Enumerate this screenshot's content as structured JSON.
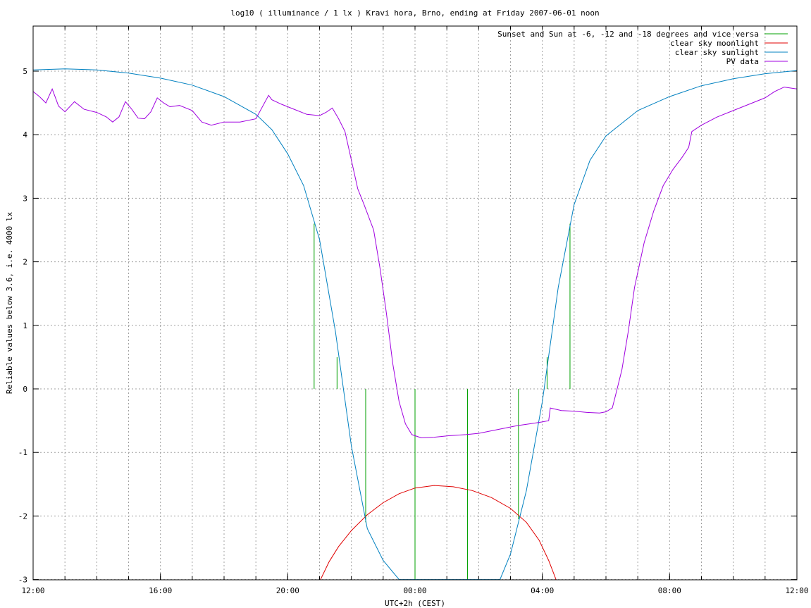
{
  "chart_data": {
    "type": "line",
    "title": "log10 ( illuminance / 1 lx ) Kravi hora, Brno, ending at Friday 2007-06-01 noon",
    "xlabel": "UTC+2h (CEST)",
    "ylabel": "Reliable values below 3.6, i.e. 4000 lx",
    "xlim_hours": [
      0,
      24
    ],
    "ylim": [
      -3,
      5.7
    ],
    "grid": true,
    "legend_position": "top-right",
    "x_ticks": [
      {
        "h": 0,
        "label": "12:00"
      },
      {
        "h": 4,
        "label": "16:00"
      },
      {
        "h": 8,
        "label": "20:00"
      },
      {
        "h": 12,
        "label": "00:00"
      },
      {
        "h": 16,
        "label": "04:00"
      },
      {
        "h": 20,
        "label": "08:00"
      },
      {
        "h": 24,
        "label": "12:00"
      }
    ],
    "x_grid_hours": [
      1,
      2,
      3,
      4,
      5,
      6,
      7,
      8,
      9,
      10,
      11,
      12,
      13,
      14,
      15,
      16,
      17,
      18,
      19,
      20,
      21,
      22,
      23
    ],
    "y_ticks": [
      -3,
      -2,
      -1,
      0,
      1,
      2,
      3,
      4,
      5
    ],
    "series": [
      {
        "name": "Sunset and Sun at -6, -12 and -18 degrees and vice versa",
        "color": "#00a000",
        "kind": "vlines",
        "lines": [
          {
            "h": 8.83,
            "y0": 0,
            "y1": 2.6
          },
          {
            "h": 9.55,
            "y0": 0,
            "y1": 0.5
          },
          {
            "h": 10.45,
            "y0": -2.1,
            "y1": 0
          },
          {
            "h": 12.0,
            "y0": -3,
            "y1": 0
          },
          {
            "h": 13.65,
            "y0": -3,
            "y1": 0
          },
          {
            "h": 15.25,
            "y0": -2.05,
            "y1": 0
          },
          {
            "h": 16.15,
            "y0": 0,
            "y1": 0.5
          },
          {
            "h": 16.87,
            "y0": 0,
            "y1": 2.6
          }
        ]
      },
      {
        "name": "clear sky moonlight",
        "color": "#e00000",
        "kind": "line",
        "points": [
          [
            9.03,
            -3.0
          ],
          [
            9.3,
            -2.72
          ],
          [
            9.6,
            -2.48
          ],
          [
            10.0,
            -2.23
          ],
          [
            10.5,
            -1.98
          ],
          [
            11.0,
            -1.79
          ],
          [
            11.5,
            -1.65
          ],
          [
            12.0,
            -1.56
          ],
          [
            12.6,
            -1.52
          ],
          [
            13.2,
            -1.54
          ],
          [
            13.8,
            -1.6
          ],
          [
            14.4,
            -1.71
          ],
          [
            15.0,
            -1.88
          ],
          [
            15.5,
            -2.1
          ],
          [
            15.9,
            -2.38
          ],
          [
            16.2,
            -2.7
          ],
          [
            16.43,
            -3.0
          ]
        ]
      },
      {
        "name": "clear sky sunlight",
        "color": "#0080c0",
        "kind": "line",
        "points": [
          [
            0,
            5.02
          ],
          [
            1,
            5.035
          ],
          [
            2,
            5.02
          ],
          [
            3,
            4.97
          ],
          [
            4,
            4.89
          ],
          [
            5,
            4.78
          ],
          [
            6,
            4.6
          ],
          [
            7,
            4.32
          ],
          [
            7.5,
            4.08
          ],
          [
            8.0,
            3.7
          ],
          [
            8.5,
            3.2
          ],
          [
            9.0,
            2.35
          ],
          [
            9.5,
            0.9
          ],
          [
            10.0,
            -0.9
          ],
          [
            10.5,
            -2.2
          ],
          [
            11.0,
            -2.7
          ],
          [
            11.5,
            -3.0
          ],
          [
            14.67,
            -3.0
          ],
          [
            15.0,
            -2.6
          ],
          [
            15.5,
            -1.6
          ],
          [
            16.0,
            -0.2
          ],
          [
            16.5,
            1.6
          ],
          [
            17.0,
            2.9
          ],
          [
            17.5,
            3.6
          ],
          [
            18.0,
            3.98
          ],
          [
            19.0,
            4.38
          ],
          [
            20.0,
            4.6
          ],
          [
            21.0,
            4.77
          ],
          [
            22.0,
            4.88
          ],
          [
            23.0,
            4.96
          ],
          [
            24.0,
            5.01
          ]
        ]
      },
      {
        "name": "PV data",
        "color": "#a000e0",
        "kind": "line",
        "points": [
          [
            0,
            4.68
          ],
          [
            0.2,
            4.6
          ],
          [
            0.4,
            4.5
          ],
          [
            0.6,
            4.72
          ],
          [
            0.8,
            4.45
          ],
          [
            1.0,
            4.36
          ],
          [
            1.3,
            4.52
          ],
          [
            1.6,
            4.4
          ],
          [
            2.0,
            4.35
          ],
          [
            2.3,
            4.28
          ],
          [
            2.5,
            4.2
          ],
          [
            2.7,
            4.28
          ],
          [
            2.9,
            4.52
          ],
          [
            3.1,
            4.4
          ],
          [
            3.3,
            4.26
          ],
          [
            3.5,
            4.25
          ],
          [
            3.7,
            4.36
          ],
          [
            3.9,
            4.58
          ],
          [
            4.1,
            4.5
          ],
          [
            4.3,
            4.44
          ],
          [
            4.6,
            4.46
          ],
          [
            5.0,
            4.38
          ],
          [
            5.3,
            4.2
          ],
          [
            5.6,
            4.15
          ],
          [
            6.0,
            4.2
          ],
          [
            6.5,
            4.2
          ],
          [
            7.0,
            4.25
          ],
          [
            7.4,
            4.62
          ],
          [
            7.5,
            4.55
          ],
          [
            7.8,
            4.48
          ],
          [
            8.2,
            4.4
          ],
          [
            8.6,
            4.32
          ],
          [
            9.0,
            4.3
          ],
          [
            9.2,
            4.35
          ],
          [
            9.4,
            4.42
          ],
          [
            9.6,
            4.25
          ],
          [
            9.8,
            4.05
          ],
          [
            10.0,
            3.6
          ],
          [
            10.2,
            3.15
          ],
          [
            10.4,
            2.9
          ],
          [
            10.7,
            2.5
          ],
          [
            10.9,
            1.9
          ],
          [
            11.1,
            1.2
          ],
          [
            11.3,
            0.4
          ],
          [
            11.5,
            -0.2
          ],
          [
            11.7,
            -0.55
          ],
          [
            11.9,
            -0.72
          ],
          [
            12.2,
            -0.77
          ],
          [
            12.6,
            -0.76
          ],
          [
            13.0,
            -0.74
          ],
          [
            13.6,
            -0.72
          ],
          [
            14.0,
            -0.7
          ],
          [
            14.4,
            -0.66
          ],
          [
            14.8,
            -0.62
          ],
          [
            15.2,
            -0.58
          ],
          [
            15.6,
            -0.55
          ],
          [
            16.0,
            -0.52
          ],
          [
            16.2,
            -0.5
          ],
          [
            16.25,
            -0.3
          ],
          [
            16.6,
            -0.34
          ],
          [
            17.0,
            -0.35
          ],
          [
            17.4,
            -0.37
          ],
          [
            17.8,
            -0.38
          ],
          [
            18.0,
            -0.36
          ],
          [
            18.2,
            -0.3
          ],
          [
            18.3,
            -0.1
          ],
          [
            18.5,
            0.3
          ],
          [
            18.7,
            0.9
          ],
          [
            18.9,
            1.6
          ],
          [
            19.2,
            2.3
          ],
          [
            19.5,
            2.8
          ],
          [
            19.8,
            3.2
          ],
          [
            20.1,
            3.45
          ],
          [
            20.4,
            3.65
          ],
          [
            20.6,
            3.8
          ],
          [
            20.7,
            4.05
          ],
          [
            21.0,
            4.15
          ],
          [
            21.5,
            4.28
          ],
          [
            22.0,
            4.38
          ],
          [
            22.5,
            4.48
          ],
          [
            23.0,
            4.58
          ],
          [
            23.3,
            4.68
          ],
          [
            23.6,
            4.75
          ],
          [
            24.0,
            4.72
          ]
        ]
      }
    ]
  }
}
